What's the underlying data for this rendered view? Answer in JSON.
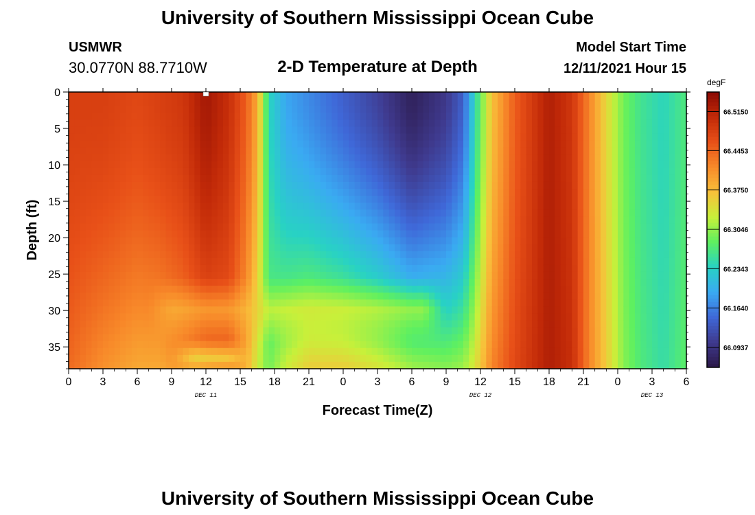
{
  "page": {
    "title": "University of Southern Mississippi Ocean Cube",
    "station": "USMWR",
    "coords": "30.0770N  88.7710W",
    "subtitle": "2-D Temperature at Depth",
    "model_label": "Model Start Time",
    "model_time": "12/11/2021 Hour 15",
    "footer_title": "University of Southern Mississippi Ocean Cube"
  },
  "chart_data": {
    "type": "heatmap",
    "xlabel": "Forecast Time(Z)",
    "ylabel": "Depth (ft)",
    "x_ticks": [
      "0",
      "3",
      "6",
      "9",
      "12",
      "15",
      "18",
      "21",
      "0",
      "3",
      "6",
      "9",
      "12",
      "15",
      "18",
      "21",
      "0",
      "3",
      "6"
    ],
    "x_range_hours": [
      0,
      54
    ],
    "day_labels": [
      {
        "label": "DEC 11",
        "hour": 12
      },
      {
        "label": "DEC 12",
        "hour": 36
      },
      {
        "label": "DEC 13",
        "hour": 51
      }
    ],
    "y_ticks": [
      0,
      5,
      10,
      15,
      20,
      25,
      30,
      35
    ],
    "y_range": [
      0,
      38
    ],
    "y_inverted": true,
    "colorbar": {
      "unit": "degF",
      "min": 66.058,
      "max": 66.55,
      "ticks": [
        "66.5150",
        "66.4453",
        "66.3750",
        "66.3046",
        "66.2343",
        "66.1640",
        "66.0937"
      ],
      "colors": [
        "#2b1848",
        "#3f3a8e",
        "#3f68d8",
        "#3aaaf2",
        "#28d2c4",
        "#5ef060",
        "#c8f03a",
        "#f8c03a",
        "#f88a2a",
        "#e85018",
        "#c22a08",
        "#8a0a04"
      ]
    },
    "marker": {
      "hour": 12,
      "depth": 0
    },
    "columns": [
      {
        "hour": 0,
        "deep": 66.44,
        "shallow": 66.48
      },
      {
        "hour": 3,
        "deep": 66.41,
        "shallow": 66.48
      },
      {
        "hour": 6,
        "deep": 66.39,
        "shallow": 66.47
      },
      {
        "hour": 8,
        "deep": 66.39,
        "shallow": 66.48
      },
      {
        "hour": 10,
        "deep": 66.41,
        "shallow": 66.49
      },
      {
        "hour": 12,
        "deep": 66.43,
        "shallow": 66.53
      },
      {
        "hour": 14,
        "deep": 66.44,
        "shallow": 66.5
      },
      {
        "hour": 15.5,
        "deep": 66.39,
        "shallow": 66.45
      },
      {
        "hour": 16.5,
        "deep": 66.33,
        "shallow": 66.39
      },
      {
        "hour": 17.5,
        "deep": 66.29,
        "shallow": 66.24
      },
      {
        "hour": 19,
        "deep": 66.33,
        "shallow": 66.19
      },
      {
        "hour": 21,
        "deep": 66.36,
        "shallow": 66.17
      },
      {
        "hour": 24,
        "deep": 66.36,
        "shallow": 66.14
      },
      {
        "hour": 27,
        "deep": 66.34,
        "shallow": 66.11
      },
      {
        "hour": 30,
        "deep": 66.31,
        "shallow": 66.07
      },
      {
        "hour": 33,
        "deep": 66.3,
        "shallow": 66.1
      },
      {
        "hour": 34.5,
        "deep": 66.31,
        "shallow": 66.14
      },
      {
        "hour": 35.5,
        "deep": 66.34,
        "shallow": 66.24
      },
      {
        "hour": 37,
        "deep": 66.42,
        "shallow": 66.37
      },
      {
        "hour": 39,
        "deep": 66.47,
        "shallow": 66.45
      },
      {
        "hour": 42,
        "deep": 66.52,
        "shallow": 66.52
      },
      {
        "hour": 44,
        "deep": 66.5,
        "shallow": 66.49
      },
      {
        "hour": 45.5,
        "deep": 66.42,
        "shallow": 66.42
      },
      {
        "hour": 47,
        "deep": 66.36,
        "shallow": 66.35
      },
      {
        "hour": 48.5,
        "deep": 66.3,
        "shallow": 66.29
      },
      {
        "hour": 50,
        "deep": 66.27,
        "shallow": 66.26
      },
      {
        "hour": 52,
        "deep": 66.25,
        "shallow": 66.24
      },
      {
        "hour": 54,
        "deep": 66.28,
        "shallow": 66.27
      }
    ],
    "bands": [
      {
        "center": 30,
        "halfwidth": 4.5,
        "value": 66.36,
        "strength": 0.55,
        "h0": 7,
        "h1": 33
      },
      {
        "center": 36.5,
        "halfwidth": 2.5,
        "value": 66.3,
        "strength": 0.55,
        "h0": 9,
        "h1": 16
      }
    ]
  }
}
